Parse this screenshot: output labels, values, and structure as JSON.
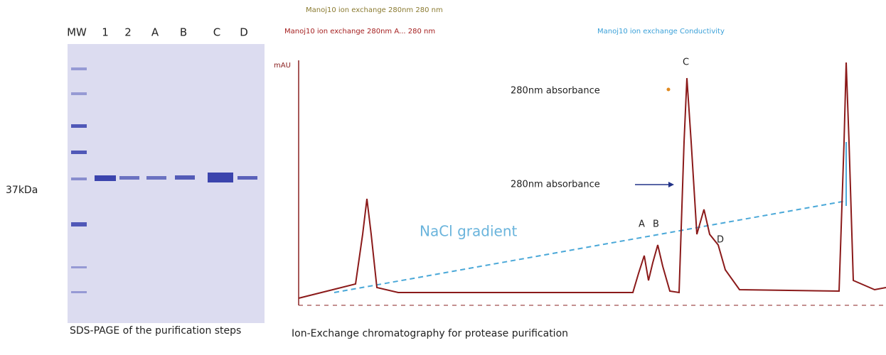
{
  "gel": {
    "lanes": [
      "MW",
      "1",
      "2",
      "A",
      "B",
      "C",
      "D"
    ],
    "marker_label": "37kDa",
    "caption": "SDS-PAGE of the purification steps"
  },
  "chromatogram": {
    "legend": [
      "Manoj10 ion exchange 280nm 280 nm",
      "Manoj10 ion exchange 280nm A... 280 nm",
      "Manoj10 ion exchange Conductivity"
    ],
    "annotations": [
      "280nm absorbance",
      "280nm absorbance",
      "NaCl gradient"
    ],
    "peaks": [
      "A",
      "B",
      "C",
      "D"
    ],
    "y_unit": "mAU",
    "caption": "Ion-Exchange chromatography for protease purification"
  }
}
